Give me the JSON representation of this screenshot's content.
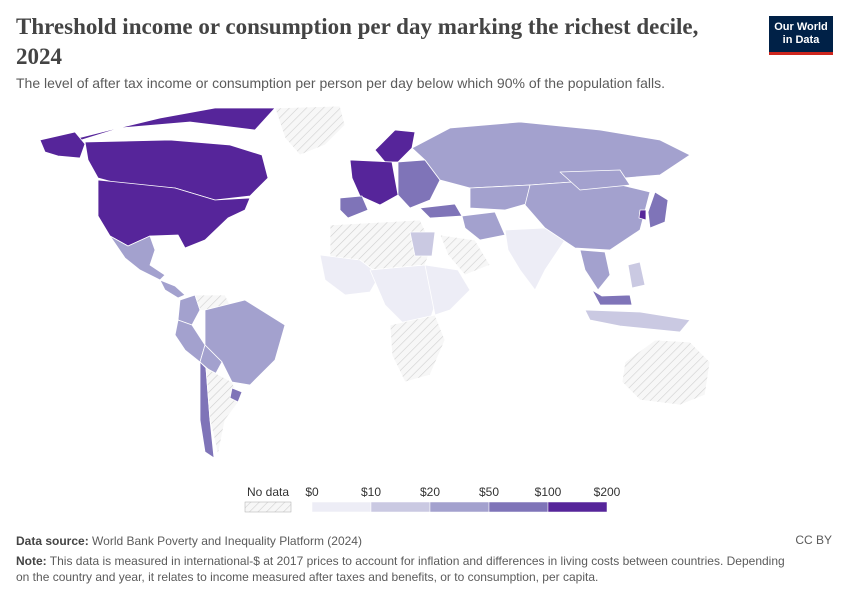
{
  "header": {
    "title": "Threshold income or consumption per day marking the richest decile, 2024",
    "subtitle": "The level of after tax income or consumption per person per day below which 90% of the population falls.",
    "logo_line1": "Our World",
    "logo_line2": "in Data"
  },
  "map": {
    "no_data_color": "#efefef",
    "ocean_color": "#ffffff",
    "legend": {
      "no_data_label": "No data",
      "ticks": [
        "$0",
        "$10",
        "$20",
        "$50",
        "$100",
        "$200"
      ],
      "bin_colors": [
        "#ededf6",
        "#cac9e2",
        "#a3a1ce",
        "#7f74b8",
        "#56259a"
      ]
    },
    "regions": [
      {
        "name": "Canada",
        "bin": 4
      },
      {
        "name": "United States",
        "bin": 4
      },
      {
        "name": "Alaska",
        "bin": 4
      },
      {
        "name": "Mexico",
        "bin": 2
      },
      {
        "name": "Central America",
        "bin": 2
      },
      {
        "name": "Colombia",
        "bin": 2
      },
      {
        "name": "Venezuela",
        "bin": -1
      },
      {
        "name": "Brazil",
        "bin": 2
      },
      {
        "name": "Peru",
        "bin": 2
      },
      {
        "name": "Bolivia",
        "bin": 2
      },
      {
        "name": "Chile",
        "bin": 3
      },
      {
        "name": "Argentina",
        "bin": -1
      },
      {
        "name": "Uruguay",
        "bin": 3
      },
      {
        "name": "Greenland",
        "bin": -1
      },
      {
        "name": "Nordics",
        "bin": 4
      },
      {
        "name": "Western Europe",
        "bin": 4
      },
      {
        "name": "Iberia",
        "bin": 3
      },
      {
        "name": "Eastern Europe",
        "bin": 3
      },
      {
        "name": "Russia",
        "bin": 2
      },
      {
        "name": "Turkey",
        "bin": 3
      },
      {
        "name": "Central Asia",
        "bin": 2
      },
      {
        "name": "Iran",
        "bin": 2
      },
      {
        "name": "Arabia",
        "bin": -1
      },
      {
        "name": "North Africa",
        "bin": -1
      },
      {
        "name": "Egypt",
        "bin": 1
      },
      {
        "name": "West Africa",
        "bin": 0
      },
      {
        "name": "Central Africa",
        "bin": 0
      },
      {
        "name": "East Africa",
        "bin": 0
      },
      {
        "name": "Southern Africa",
        "bin": -1
      },
      {
        "name": "India",
        "bin": 0
      },
      {
        "name": "China",
        "bin": 2
      },
      {
        "name": "Mongolia",
        "bin": 2
      },
      {
        "name": "South Korea",
        "bin": 4
      },
      {
        "name": "Japan",
        "bin": 3
      },
      {
        "name": "Southeast Asia",
        "bin": 2
      },
      {
        "name": "Malaysia",
        "bin": 3
      },
      {
        "name": "Indonesia",
        "bin": 1
      },
      {
        "name": "Philippines",
        "bin": 1
      },
      {
        "name": "Australia",
        "bin": -1
      }
    ]
  },
  "footer": {
    "source_label": "Data source:",
    "source_text": "World Bank Poverty and Inequality Platform (2024)",
    "license": "CC BY",
    "note_label": "Note:",
    "note_text": "This data is measured in international-$ at 2017 prices to account for inflation and differences in living costs between countries. Depending on the country and year, it relates to income measured after taxes and benefits, or to consumption, per capita."
  }
}
